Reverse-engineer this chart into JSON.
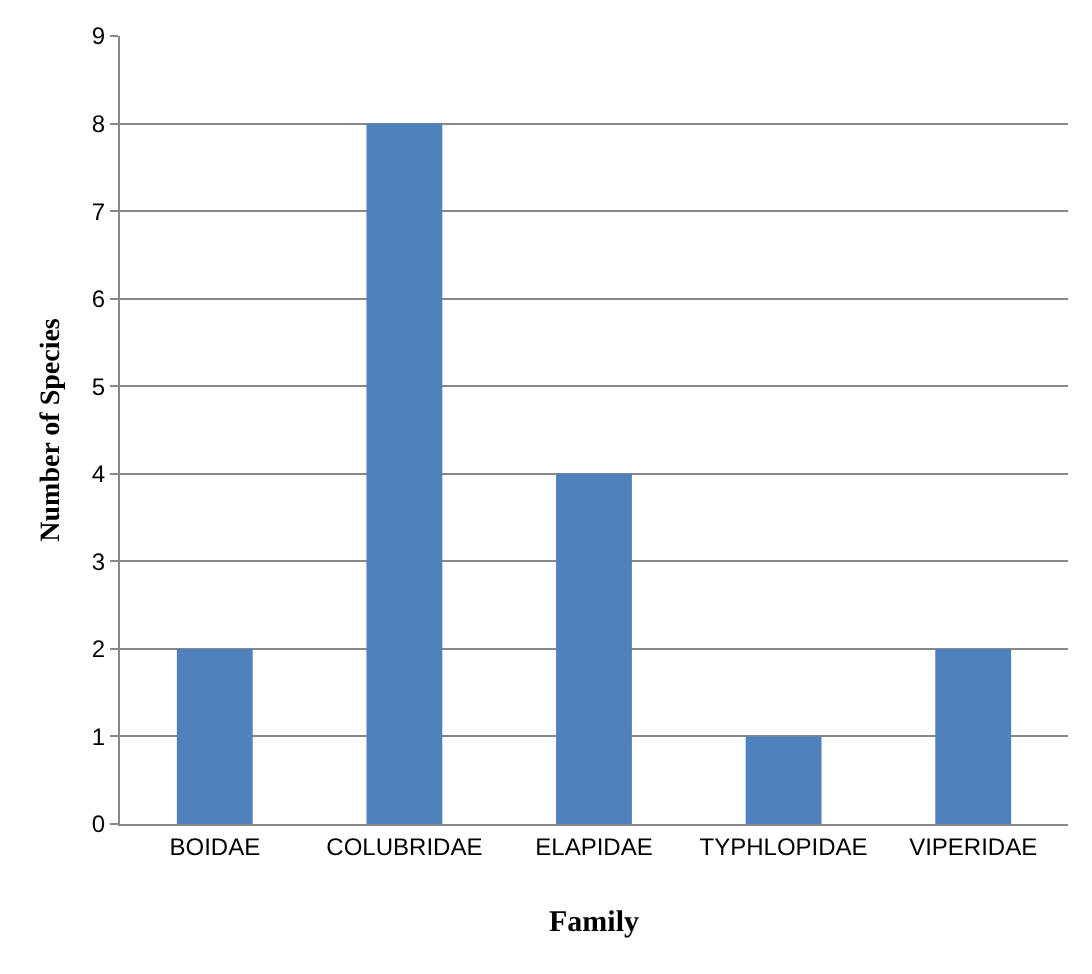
{
  "chart_data": {
    "type": "bar",
    "xlabel": "Family",
    "ylabel": "Number of Species",
    "categories": [
      "BOIDAE",
      "COLUBRIDAE",
      "ELAPIDAE",
      "TYPHLOPIDAE",
      "VIPERIDAE"
    ],
    "values": [
      2,
      8,
      4,
      1,
      2
    ],
    "color": "#4f81bd",
    "ylim": [
      0,
      9
    ],
    "yticks": [
      0,
      1,
      2,
      3,
      4,
      5,
      6,
      7,
      8,
      9
    ],
    "grid": "y"
  }
}
